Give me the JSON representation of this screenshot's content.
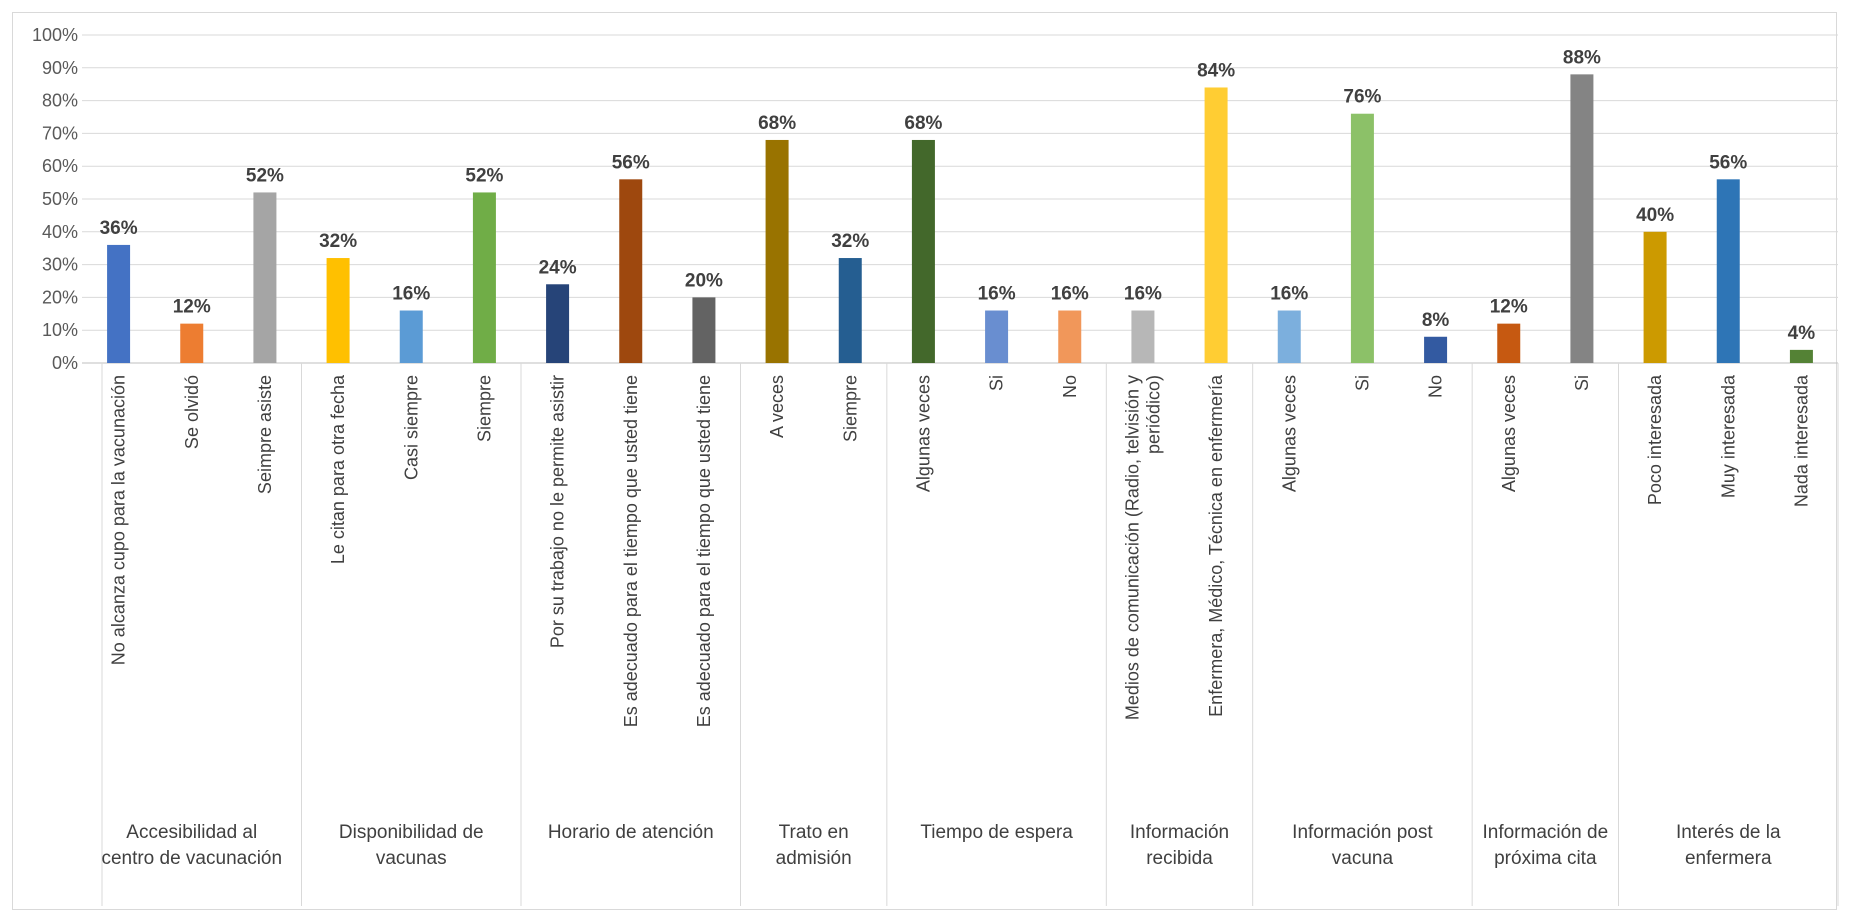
{
  "chart_data": {
    "type": "bar",
    "title": "",
    "xlabel": "",
    "ylabel": "",
    "ylim": [
      0,
      1
    ],
    "y_ticks": [
      "0%",
      "10%",
      "20%",
      "30%",
      "40%",
      "50%",
      "60%",
      "70%",
      "80%",
      "90%",
      "100%"
    ],
    "grid": true,
    "legend": "none",
    "groups": [
      {
        "label": "Accesibilidad al centro de vacunación",
        "bars": [
          {
            "label": "No alcanza cupo para la vacunación",
            "value": 0.36,
            "value_label": "36%",
            "color": "#4472C4"
          },
          {
            "label": "Se olvidó",
            "value": 0.12,
            "value_label": "12%",
            "color": "#ED7D31"
          },
          {
            "label": "Seimpre asiste",
            "value": 0.52,
            "value_label": "52%",
            "color": "#A5A5A5"
          }
        ]
      },
      {
        "label": "Disponibilidad de vacunas",
        "bars": [
          {
            "label": "Le citan para otra fecha",
            "value": 0.32,
            "value_label": "32%",
            "color": "#FFC000"
          },
          {
            "label": "Casi siempre",
            "value": 0.16,
            "value_label": "16%",
            "color": "#5B9BD5"
          },
          {
            "label": "Siempre",
            "value": 0.52,
            "value_label": "52%",
            "color": "#70AD47"
          }
        ]
      },
      {
        "label": "Horario de atención",
        "bars": [
          {
            "label": "Por su trabajo no le permite asistir",
            "value": 0.24,
            "value_label": "24%",
            "color": "#264478"
          },
          {
            "label": "Es adecuado para el tiempo que usted tiene",
            "value": 0.56,
            "value_label": "56%",
            "color": "#9E480E"
          },
          {
            "label": "Es adecuado para el tiempo que usted tiene",
            "value": 0.2,
            "value_label": "20%",
            "color": "#636363"
          }
        ]
      },
      {
        "label": "Trato en admisión",
        "bars": [
          {
            "label": "A veces",
            "value": 0.68,
            "value_label": "68%",
            "color": "#997300"
          },
          {
            "label": "Siempre",
            "value": 0.32,
            "value_label": "32%",
            "color": "#255E91"
          }
        ]
      },
      {
        "label": "Tiempo de espera",
        "bars": [
          {
            "label": "Algunas veces",
            "value": 0.68,
            "value_label": "68%",
            "color": "#43682B"
          },
          {
            "label": "Si",
            "value": 0.16,
            "value_label": "16%",
            "color": "#698ED0"
          },
          {
            "label": "No",
            "value": 0.16,
            "value_label": "16%",
            "color": "#F1975A"
          }
        ]
      },
      {
        "label": "Información recibida",
        "bars": [
          {
            "label": "Medios de comunicación (Radio, telvisión y periódico)",
            "value": 0.16,
            "value_label": "16%",
            "color": "#B7B7B7"
          },
          {
            "label": "Enfermera, Médico, Técnica en enfermería",
            "value": 0.84,
            "value_label": "84%",
            "color": "#FFCD33"
          }
        ]
      },
      {
        "label": "Información post vacuna",
        "bars": [
          {
            "label": "Algunas veces",
            "value": 0.16,
            "value_label": "16%",
            "color": "#7CAFDD"
          },
          {
            "label": "Si",
            "value": 0.76,
            "value_label": "76%",
            "color": "#8CC168"
          },
          {
            "label": "No",
            "value": 0.08,
            "value_label": "8%",
            "color": "#335AA1"
          }
        ]
      },
      {
        "label": "Información de próxima cita",
        "bars": [
          {
            "label": "Algunas veces",
            "value": 0.12,
            "value_label": "12%",
            "color": "#C65911"
          },
          {
            "label": "Si",
            "value": 0.88,
            "value_label": "88%",
            "color": "#848484"
          }
        ]
      },
      {
        "label": "Interés de la enfermera",
        "bars": [
          {
            "label": "Poco interesada",
            "value": 0.4,
            "value_label": "40%",
            "color": "#CC9A00"
          },
          {
            "label": "Muy interesada",
            "value": 0.56,
            "value_label": "56%",
            "color": "#2E75B6"
          },
          {
            "label": "Nada interesada",
            "value": 0.04,
            "value_label": "4%",
            "color": "#548235"
          }
        ]
      }
    ]
  }
}
